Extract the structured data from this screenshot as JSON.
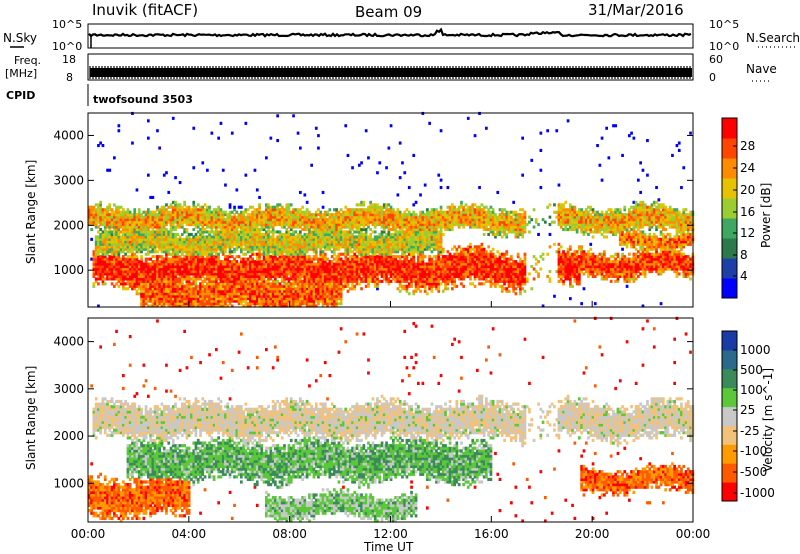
{
  "header": {
    "station": "Inuvik (fitACF)",
    "beam": "Beam 09",
    "date": "31/Mar/2016"
  },
  "top_panels": {
    "nsky_label": "N.Sky",
    "nsky_ticks": [
      "10^5",
      "10^0"
    ],
    "nsearch_label": "N.Search",
    "nsearch_ticks": [
      "10^5",
      "10^0"
    ],
    "freq_label": "Freq.",
    "freq_unit": "[MHz]",
    "freq_ticks": [
      "18",
      "8"
    ],
    "nave_label": "Nave",
    "nave_ticks": [
      "60",
      "0"
    ],
    "cpid_label": "CPID",
    "cpid_value": "twofsound 3503"
  },
  "chart_data": [
    {
      "type": "heatmap",
      "name": "power",
      "ylabel": "Slant Range [km]",
      "yticks": [
        "4000",
        "3000",
        "2000",
        "1000"
      ],
      "ylim": [
        180,
        4500
      ],
      "colorbar_label": "Power [dB]",
      "colorbar_ticks": [
        "28",
        "24",
        "20",
        "16",
        "12",
        "8",
        "4"
      ],
      "colors": [
        "#0000ff",
        "#1c3fa8",
        "#2c7a4b",
        "#3fa860",
        "#9acd32",
        "#e6c200",
        "#ff8c00",
        "#ff4500",
        "#ff0000"
      ],
      "bands": [
        {
          "t0": 0.1,
          "t1": 19.5,
          "center": 1000,
          "width": 500,
          "level": 0.8
        },
        {
          "t0": 0.0,
          "t1": 24,
          "center": 2100,
          "width": 350,
          "level": 0.55
        },
        {
          "t0": 0.2,
          "t1": 14,
          "center": 1600,
          "width": 400,
          "level": 0.45
        },
        {
          "t0": 19.0,
          "t1": 24,
          "center": 1100,
          "width": 350,
          "level": 0.75
        },
        {
          "t0": 21.0,
          "t1": 24,
          "center": 1650,
          "width": 250,
          "level": 0.65
        },
        {
          "t0": 2.0,
          "t1": 10,
          "center": 450,
          "width": 500,
          "level": 0.7
        }
      ]
    },
    {
      "type": "heatmap",
      "name": "velocity",
      "ylabel": "Slant Range [km]",
      "yticks": [
        "4000",
        "3000",
        "2000",
        "1000"
      ],
      "ylim": [
        180,
        4500
      ],
      "colorbar_label": "Velocity [m s^-1]",
      "colorbar_ticks": [
        "1000",
        "500",
        "100",
        "25",
        "-25",
        "-100",
        "-500",
        "-1000"
      ],
      "colors": [
        "#ff0000",
        "#ff5a00",
        "#ff9a00",
        "#f2c27a",
        "#c8c8c8",
        "#5bc83a",
        "#3a8a5a",
        "#2a6a8a",
        "#1a3aa8"
      ],
      "bands": [
        {
          "t0": 0.1,
          "t1": 24,
          "center": 2300,
          "width": 450,
          "level": 0.45
        },
        {
          "t0": 1.5,
          "t1": 16,
          "center": 1450,
          "width": 500,
          "level": 0.65
        },
        {
          "t0": 0.0,
          "t1": 4,
          "center": 700,
          "width": 500,
          "level": 0.15
        },
        {
          "t0": 19.5,
          "t1": 24,
          "center": 1050,
          "width": 300,
          "level": 0.15
        },
        {
          "t0": 7.0,
          "t1": 13,
          "center": 500,
          "width": 300,
          "level": 0.6
        }
      ]
    }
  ],
  "xaxis": {
    "label": "Time UT",
    "ticks": [
      "00:00",
      "04:00",
      "08:00",
      "12:00",
      "16:00",
      "20:00",
      "00:00"
    ]
  }
}
